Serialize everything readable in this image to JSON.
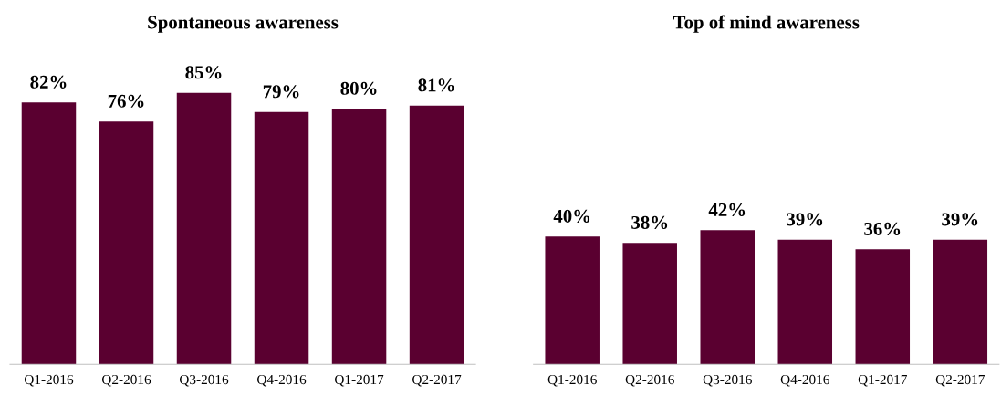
{
  "chart_data": [
    {
      "type": "bar",
      "title": "Spontaneous awareness",
      "categories": [
        "Q1-2016",
        "Q2-2016",
        "Q3-2016",
        "Q4-2016",
        "Q1-2017",
        "Q2-2017"
      ],
      "values": [
        82,
        76,
        85,
        79,
        80,
        81
      ],
      "value_labels": [
        "82%",
        "76%",
        "85%",
        "79%",
        "80%",
        "81%"
      ],
      "color": "#5a0030",
      "tick_labels": "x"
    },
    {
      "type": "bar",
      "title": "Top of mind awareness",
      "categories": [
        "Q1-2016",
        "Q2-2016",
        "Q3-2016",
        "Q4-2016",
        "Q1-2017",
        "Q2-2017"
      ],
      "values": [
        40,
        38,
        42,
        39,
        36,
        39
      ],
      "value_labels": [
        "40%",
        "38%",
        "42%",
        "39%",
        "36%",
        "39%"
      ],
      "color": "#5a0030",
      "tick_labels": "x"
    }
  ]
}
